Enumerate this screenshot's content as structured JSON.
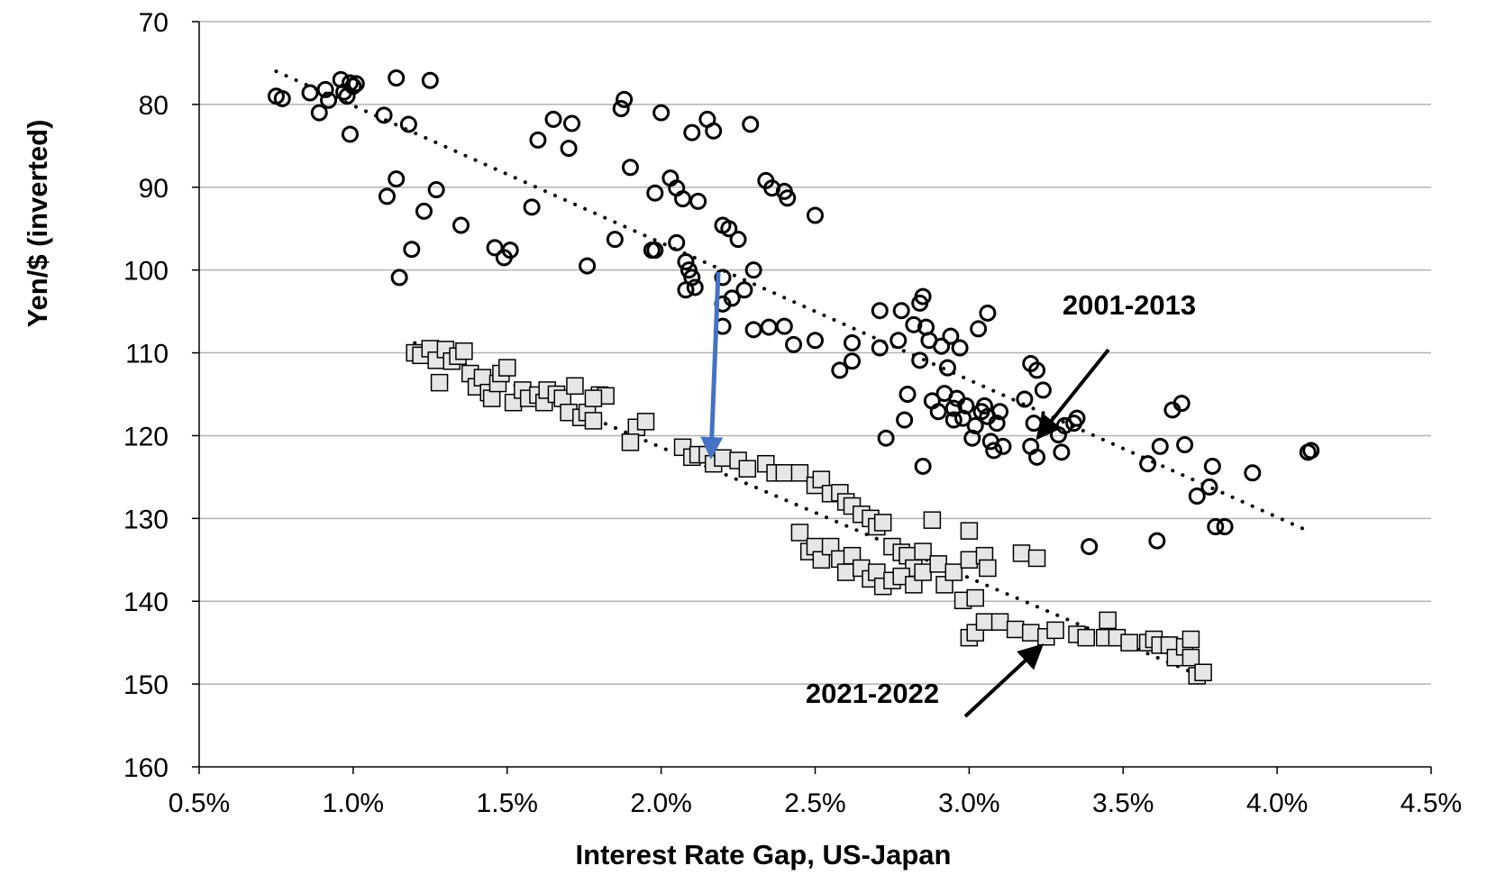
{
  "chart_data": {
    "type": "scatter",
    "title": "",
    "xlabel": "Interest Rate Gap, US-Japan",
    "ylabel": "Yen/$ (inverted)",
    "xlim": [
      0.5,
      4.5
    ],
    "ylim": [
      70,
      160
    ],
    "y_inverted": true,
    "x_ticks": [
      0.5,
      1.0,
      1.5,
      2.0,
      2.5,
      3.0,
      3.5,
      4.0,
      4.5
    ],
    "x_tick_labels": [
      "0.5%",
      "1.0%",
      "1.5%",
      "2.0%",
      "2.5%",
      "3.0%",
      "3.5%",
      "4.0%",
      "4.5%"
    ],
    "y_ticks": [
      70,
      80,
      90,
      100,
      110,
      120,
      130,
      140,
      150,
      160
    ],
    "y_tick_labels": [
      "70",
      "80",
      "90",
      "100",
      "110",
      "120",
      "130",
      "140",
      "150",
      "160"
    ],
    "grid": "horizontal",
    "legend": "none",
    "series": [
      {
        "label": "2001-2013",
        "marker": "circle",
        "trendline": {
          "x": [
            0.75,
            4.1
          ],
          "y": [
            76,
            131.5
          ]
        },
        "points": [
          [
            0.75,
            79
          ],
          [
            0.77,
            79.3
          ],
          [
            0.86,
            78.6
          ],
          [
            0.89,
            81
          ],
          [
            0.91,
            78.2
          ],
          [
            0.92,
            79.5
          ],
          [
            0.96,
            77
          ],
          [
            0.97,
            78.5
          ],
          [
            0.98,
            79
          ],
          [
            0.99,
            77.4
          ],
          [
            1.0,
            77.8
          ],
          [
            1.01,
            77.5
          ],
          [
            0.99,
            83.6
          ],
          [
            1.1,
            81.3
          ],
          [
            1.14,
            76.8
          ],
          [
            1.18,
            82.4
          ],
          [
            1.25,
            77.1
          ],
          [
            1.11,
            91.1
          ],
          [
            1.14,
            89
          ],
          [
            1.27,
            90.3
          ],
          [
            1.23,
            92.9
          ],
          [
            1.19,
            97.5
          ],
          [
            1.15,
            100.9
          ],
          [
            1.35,
            94.6
          ],
          [
            1.46,
            97.3
          ],
          [
            1.51,
            97.6
          ],
          [
            1.49,
            98.5
          ],
          [
            1.58,
            92.4
          ],
          [
            1.6,
            84.3
          ],
          [
            1.65,
            81.8
          ],
          [
            1.7,
            85.3
          ],
          [
            1.71,
            82.3
          ],
          [
            1.76,
            99.5
          ],
          [
            1.85,
            96.3
          ],
          [
            1.87,
            80.5
          ],
          [
            1.88,
            79.4
          ],
          [
            1.9,
            87.6
          ],
          [
            1.97,
            97.6
          ],
          [
            1.98,
            90.7
          ],
          [
            2.0,
            81
          ],
          [
            2.03,
            88.9
          ],
          [
            2.05,
            90.1
          ],
          [
            2.07,
            91.4
          ],
          [
            2.1,
            83.4
          ],
          [
            2.12,
            91.7
          ],
          [
            2.15,
            81.8
          ],
          [
            2.17,
            83.2
          ],
          [
            2.2,
            94.6
          ],
          [
            2.22,
            95
          ],
          [
            2.05,
            96.7
          ],
          [
            1.98,
            97.6
          ],
          [
            2.08,
            99
          ],
          [
            2.09,
            100
          ],
          [
            2.1,
            100.9
          ],
          [
            2.08,
            102.4
          ],
          [
            2.11,
            102.1
          ],
          [
            2.2,
            100.9
          ],
          [
            2.23,
            103.4
          ],
          [
            2.25,
            96.3
          ],
          [
            2.27,
            102.4
          ],
          [
            2.2,
            104.1
          ],
          [
            2.3,
            100
          ],
          [
            2.34,
            89.2
          ],
          [
            2.36,
            90.1
          ],
          [
            2.4,
            90.5
          ],
          [
            2.41,
            91.3
          ],
          [
            2.29,
            82.4
          ],
          [
            2.2,
            106.8
          ],
          [
            2.3,
            107.2
          ],
          [
            2.35,
            106.9
          ],
          [
            2.4,
            106.8
          ],
          [
            2.43,
            109
          ],
          [
            2.5,
            93.4
          ],
          [
            2.5,
            108.5
          ],
          [
            2.58,
            112.1
          ],
          [
            2.62,
            108.8
          ],
          [
            2.62,
            111
          ],
          [
            2.71,
            104.9
          ],
          [
            2.71,
            109.4
          ],
          [
            2.73,
            120.3
          ],
          [
            2.77,
            108.5
          ],
          [
            2.78,
            104.9
          ],
          [
            2.79,
            118.1
          ],
          [
            2.8,
            115
          ],
          [
            2.82,
            106.6
          ],
          [
            2.84,
            104
          ],
          [
            2.85,
            103.2
          ],
          [
            2.84,
            110.9
          ],
          [
            2.86,
            106.9
          ],
          [
            2.87,
            108.5
          ],
          [
            2.88,
            115.8
          ],
          [
            2.9,
            117.1
          ],
          [
            2.92,
            114.9
          ],
          [
            2.93,
            111.8
          ],
          [
            2.95,
            116.7
          ],
          [
            2.96,
            115.5
          ],
          [
            2.91,
            109.2
          ],
          [
            2.94,
            108
          ],
          [
            2.97,
            109.4
          ],
          [
            2.95,
            118.1
          ],
          [
            2.98,
            117.9
          ],
          [
            2.99,
            116.4
          ],
          [
            3.01,
            120.3
          ],
          [
            3.02,
            118.8
          ],
          [
            3.03,
            107.1
          ],
          [
            3.05,
            116.4
          ],
          [
            3.06,
            105.2
          ],
          [
            3.06,
            117.7
          ],
          [
            3.07,
            120.7
          ],
          [
            3.08,
            121.8
          ],
          [
            3.1,
            117.1
          ],
          [
            3.11,
            121.3
          ],
          [
            3.09,
            118.5
          ],
          [
            3.04,
            117.1
          ],
          [
            2.85,
            123.7
          ],
          [
            3.18,
            115.6
          ],
          [
            3.2,
            111.3
          ],
          [
            3.21,
            118.5
          ],
          [
            3.22,
            122.6
          ],
          [
            3.22,
            112.1
          ],
          [
            3.24,
            114.5
          ],
          [
            3.2,
            121.3
          ],
          [
            3.29,
            119.9
          ],
          [
            3.3,
            122
          ],
          [
            3.31,
            118.8
          ],
          [
            3.34,
            118.5
          ],
          [
            3.35,
            117.9
          ],
          [
            3.39,
            133.4
          ],
          [
            3.58,
            123.4
          ],
          [
            3.61,
            132.7
          ],
          [
            3.62,
            121.3
          ],
          [
            3.66,
            116.9
          ],
          [
            3.69,
            116.1
          ],
          [
            3.7,
            121.1
          ],
          [
            3.74,
            127.3
          ],
          [
            3.78,
            126.2
          ],
          [
            3.79,
            123.7
          ],
          [
            3.8,
            131
          ],
          [
            3.83,
            131
          ],
          [
            3.92,
            124.5
          ],
          [
            4.1,
            122
          ],
          [
            4.11,
            121.8
          ]
        ]
      },
      {
        "label": "2021-2022",
        "marker": "square",
        "trendline": {
          "x": [
            1.2,
            3.75
          ],
          "y": [
            108.8,
            149
          ]
        },
        "points": [
          [
            1.2,
            110
          ],
          [
            1.22,
            110.3
          ],
          [
            1.25,
            109.5
          ],
          [
            1.27,
            110.9
          ],
          [
            1.3,
            109.6
          ],
          [
            1.32,
            111
          ],
          [
            1.34,
            110.4
          ],
          [
            1.36,
            109.8
          ],
          [
            1.28,
            113.6
          ],
          [
            1.38,
            112.5
          ],
          [
            1.4,
            114.1
          ],
          [
            1.42,
            113
          ],
          [
            1.44,
            114.8
          ],
          [
            1.45,
            115.5
          ],
          [
            1.47,
            113.7
          ],
          [
            1.48,
            112.5
          ],
          [
            1.5,
            111.8
          ],
          [
            1.52,
            116
          ],
          [
            1.55,
            114.5
          ],
          [
            1.57,
            115.5
          ],
          [
            1.6,
            115.1
          ],
          [
            1.62,
            116
          ],
          [
            1.63,
            114.5
          ],
          [
            1.66,
            115
          ],
          [
            1.68,
            115.5
          ],
          [
            1.7,
            117.2
          ],
          [
            1.72,
            114
          ],
          [
            1.74,
            117.8
          ],
          [
            1.76,
            117.2
          ],
          [
            1.78,
            118.2
          ],
          [
            1.8,
            115.1
          ],
          [
            1.82,
            115.2
          ],
          [
            1.78,
            115.5
          ],
          [
            1.92,
            119
          ],
          [
            1.95,
            118.3
          ],
          [
            1.9,
            120.8
          ],
          [
            2.07,
            121.4
          ],
          [
            2.1,
            122.6
          ],
          [
            2.12,
            122.3
          ],
          [
            2.15,
            122.3
          ],
          [
            2.17,
            123.4
          ],
          [
            2.2,
            122.7
          ],
          [
            2.25,
            123
          ],
          [
            2.28,
            124
          ],
          [
            2.34,
            123.4
          ],
          [
            2.37,
            124.5
          ],
          [
            2.4,
            124.5
          ],
          [
            2.45,
            124.5
          ],
          [
            2.5,
            126
          ],
          [
            2.52,
            125.3
          ],
          [
            2.55,
            127
          ],
          [
            2.58,
            126.9
          ],
          [
            2.6,
            128
          ],
          [
            2.62,
            128.5
          ],
          [
            2.65,
            129.5
          ],
          [
            2.68,
            130
          ],
          [
            2.7,
            131
          ],
          [
            2.72,
            130.5
          ],
          [
            2.75,
            133.4
          ],
          [
            2.78,
            134.1
          ],
          [
            2.8,
            134.5
          ],
          [
            2.82,
            136
          ],
          [
            2.85,
            134
          ],
          [
            2.88,
            130.2
          ],
          [
            2.45,
            131.7
          ],
          [
            2.48,
            134
          ],
          [
            2.5,
            133.4
          ],
          [
            2.52,
            135
          ],
          [
            2.55,
            133.4
          ],
          [
            2.58,
            134.9
          ],
          [
            2.6,
            136.5
          ],
          [
            2.62,
            134.5
          ],
          [
            2.65,
            136
          ],
          [
            2.68,
            137.3
          ],
          [
            2.7,
            136.5
          ],
          [
            2.72,
            138.2
          ],
          [
            2.75,
            137.5
          ],
          [
            2.78,
            137
          ],
          [
            2.82,
            138
          ],
          [
            2.85,
            136.5
          ],
          [
            2.9,
            135.5
          ],
          [
            2.92,
            138
          ],
          [
            2.95,
            136.5
          ],
          [
            2.98,
            139.9
          ],
          [
            3.0,
            131.5
          ],
          [
            3.02,
            139.6
          ],
          [
            3.0,
            135
          ],
          [
            3.05,
            134.5
          ],
          [
            3.06,
            136
          ],
          [
            3.17,
            134.2
          ],
          [
            3.22,
            134.8
          ],
          [
            3.0,
            144.4
          ],
          [
            3.02,
            143.8
          ],
          [
            3.05,
            142.5
          ],
          [
            3.1,
            142.5
          ],
          [
            3.15,
            143.4
          ],
          [
            3.2,
            143.8
          ],
          [
            3.25,
            144.3
          ],
          [
            3.28,
            143.5
          ],
          [
            3.35,
            144
          ],
          [
            3.38,
            144.4
          ],
          [
            3.44,
            144.4
          ],
          [
            3.45,
            142.3
          ],
          [
            3.48,
            144.4
          ],
          [
            3.52,
            145
          ],
          [
            3.58,
            145
          ],
          [
            3.6,
            144.6
          ],
          [
            3.62,
            145.3
          ],
          [
            3.65,
            145.3
          ],
          [
            3.67,
            146.8
          ],
          [
            3.7,
            145.5
          ],
          [
            3.72,
            144.6
          ],
          [
            3.72,
            146.8
          ],
          [
            3.74,
            149
          ],
          [
            3.76,
            148.6
          ]
        ]
      }
    ],
    "annotations": [
      {
        "text": "2001-2013"
      },
      {
        "text": "2021-2022"
      }
    ],
    "colors": {
      "axis": "#000000",
      "grid": "#b3b3b3",
      "circle_stroke": "#000000",
      "square_fill": "#e6e6e6",
      "square_stroke": "#000000",
      "shift_arrow": "#4472c4"
    }
  }
}
